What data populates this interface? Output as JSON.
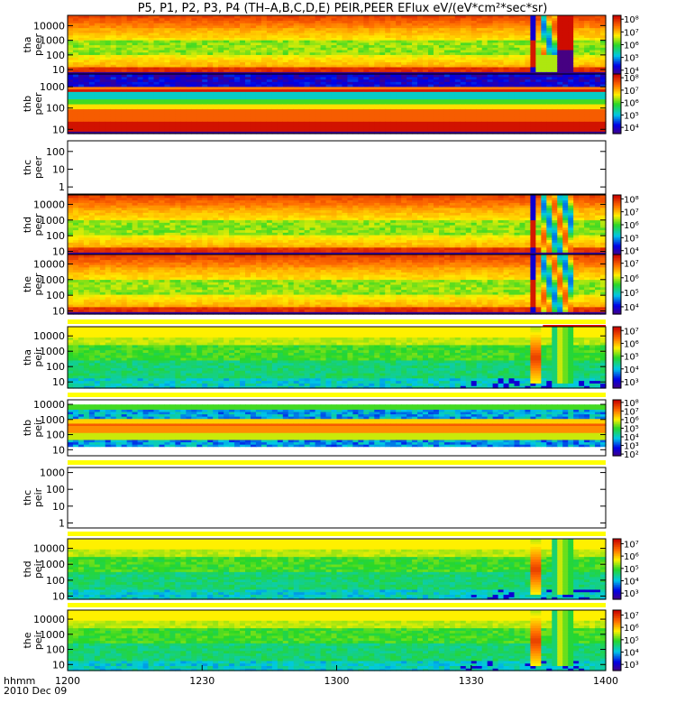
{
  "chart_data": {
    "type": "heatmap",
    "title": "P5, P1, P2, P3, P4 (TH–A,B,C,D,E) PEIR,PEER EFlux eV/(eV*cm²*sec*sr)",
    "x_axis": {
      "start_label_lines": [
        "hhmm",
        "2010 Dec 09"
      ],
      "tick_labels": [
        "1200",
        "1230",
        "1300",
        "1330",
        "1400"
      ],
      "range_minutes": [
        0,
        120
      ],
      "tick_minutes": [
        0,
        30,
        60,
        90,
        120
      ]
    },
    "panels": [
      {
        "name": "tha-peer",
        "label_lines": [
          "tha",
          "peer"
        ],
        "yticks": [
          "10",
          "100",
          "1000",
          "10000"
        ],
        "ytick_exp": [
          1,
          2,
          3,
          4
        ],
        "y_range": [
          0.7,
          4.7
        ],
        "status_bar": false,
        "cbar_ticks": [
          "10⁴",
          "10⁵",
          "10⁶",
          "10⁷",
          "10⁸"
        ],
        "cbar_exp": [
          4,
          5,
          6,
          7,
          8
        ],
        "cbar_range": [
          3.7,
          8.3
        ],
        "has_data": true,
        "pattern": "peer-tha"
      },
      {
        "name": "thb-peer",
        "label_lines": [
          "thb",
          "peer"
        ],
        "yticks": [
          "10",
          "100",
          "1000"
        ],
        "ytick_exp": [
          1,
          2,
          3
        ],
        "y_range": [
          0.8,
          3.6
        ],
        "status_bar": false,
        "cbar_ticks": [
          "10⁴",
          "10⁵",
          "10⁶",
          "10⁷",
          "10⁸"
        ],
        "cbar_exp": [
          4,
          5,
          6,
          7,
          8
        ],
        "cbar_range": [
          3.5,
          8.3
        ],
        "has_data": true,
        "pattern": "peer-thb"
      },
      {
        "name": "thc-peer",
        "label_lines": [
          "thc",
          "peer"
        ],
        "yticks": [
          "1",
          "10",
          "100"
        ],
        "ytick_exp": [
          0,
          1,
          2
        ],
        "y_range": [
          -0.4,
          2.6
        ],
        "status_bar": false,
        "cbar_ticks": [],
        "cbar_exp": [],
        "cbar_range": [
          0,
          1
        ],
        "has_data": false,
        "pattern": "none"
      },
      {
        "name": "thd-peer",
        "label_lines": [
          "thd",
          "peer"
        ],
        "yticks": [
          "10",
          "100",
          "1000",
          "10000"
        ],
        "ytick_exp": [
          1,
          2,
          3,
          4
        ],
        "y_range": [
          0.8,
          4.6
        ],
        "status_bar": false,
        "cbar_ticks": [
          "10⁴",
          "10⁵",
          "10⁶",
          "10⁷",
          "10⁸"
        ],
        "cbar_exp": [
          4,
          5,
          6,
          7,
          8
        ],
        "cbar_range": [
          3.7,
          8.3
        ],
        "has_data": true,
        "pattern": "peer-d"
      },
      {
        "name": "the-peer",
        "label_lines": [
          "the",
          "peer"
        ],
        "yticks": [
          "10",
          "100",
          "1000",
          "10000"
        ],
        "ytick_exp": [
          1,
          2,
          3,
          4
        ],
        "y_range": [
          0.8,
          4.6
        ],
        "status_bar": false,
        "cbar_ticks": [
          "10⁴",
          "10⁵",
          "10⁶",
          "10⁷"
        ],
        "cbar_exp": [
          4,
          5,
          6,
          7
        ],
        "cbar_range": [
          3.5,
          7.6
        ],
        "has_data": true,
        "pattern": "peer-e"
      },
      {
        "name": "tha-peir",
        "label_lines": [
          "tha",
          "peir"
        ],
        "yticks": [
          "10",
          "100",
          "1000",
          "10000"
        ],
        "ytick_exp": [
          1,
          2,
          3,
          4
        ],
        "y_range": [
          0.6,
          4.6
        ],
        "status_bar": true,
        "status_red_from_minute": 106,
        "cbar_ticks": [
          "10³",
          "10⁴",
          "10⁵",
          "10⁶",
          "10⁷"
        ],
        "cbar_exp": [
          3,
          4,
          5,
          6,
          7
        ],
        "cbar_range": [
          2.5,
          7.3
        ],
        "has_data": true,
        "pattern": "peir"
      },
      {
        "name": "thb-peir",
        "label_lines": [
          "thb",
          "peir"
        ],
        "yticks": [
          "10",
          "100",
          "1000",
          "10000"
        ],
        "ytick_exp": [
          1,
          2,
          3,
          4
        ],
        "y_range": [
          0.6,
          4.3
        ],
        "status_bar": true,
        "cbar_ticks": [
          "10²",
          "10³",
          "10⁴",
          "10⁵",
          "10⁶",
          "10⁷",
          "10⁸"
        ],
        "cbar_exp": [
          2,
          3,
          4,
          5,
          6,
          7,
          8
        ],
        "cbar_range": [
          1.8,
          8.3
        ],
        "has_data": true,
        "pattern": "peir-thb"
      },
      {
        "name": "thc-peir",
        "label_lines": [
          "thc",
          "peir"
        ],
        "yticks": [
          "1",
          "10",
          "100",
          "1000"
        ],
        "ytick_exp": [
          0,
          1,
          2,
          3
        ],
        "y_range": [
          -0.3,
          3.3
        ],
        "status_bar": true,
        "cbar_ticks": [],
        "cbar_exp": [],
        "cbar_range": [
          0,
          1
        ],
        "has_data": false,
        "pattern": "none"
      },
      {
        "name": "thd-peir",
        "label_lines": [
          "thd",
          "peir"
        ],
        "yticks": [
          "10",
          "100",
          "1000",
          "10000"
        ],
        "ytick_exp": [
          1,
          2,
          3,
          4
        ],
        "y_range": [
          0.8,
          4.6
        ],
        "status_bar": true,
        "cbar_ticks": [
          "10³",
          "10⁴",
          "10⁵",
          "10⁶",
          "10⁷"
        ],
        "cbar_exp": [
          3,
          4,
          5,
          6,
          7
        ],
        "cbar_range": [
          2.5,
          7.4
        ],
        "has_data": true,
        "pattern": "peir"
      },
      {
        "name": "the-peir",
        "label_lines": [
          "the",
          "peir"
        ],
        "yticks": [
          "10",
          "100",
          "1000",
          "10000"
        ],
        "ytick_exp": [
          1,
          2,
          3,
          4
        ],
        "y_range": [
          0.6,
          4.6
        ],
        "status_bar": true,
        "cbar_ticks": [
          "10³",
          "10⁴",
          "10⁵",
          "10⁶",
          "10⁷"
        ],
        "cbar_exp": [
          3,
          4,
          5,
          6,
          7
        ],
        "cbar_range": [
          2.5,
          7.4
        ],
        "has_data": true,
        "pattern": "peir"
      }
    ],
    "status_colors": {
      "good": "#ffff00",
      "flag": "#ee0000"
    }
  }
}
